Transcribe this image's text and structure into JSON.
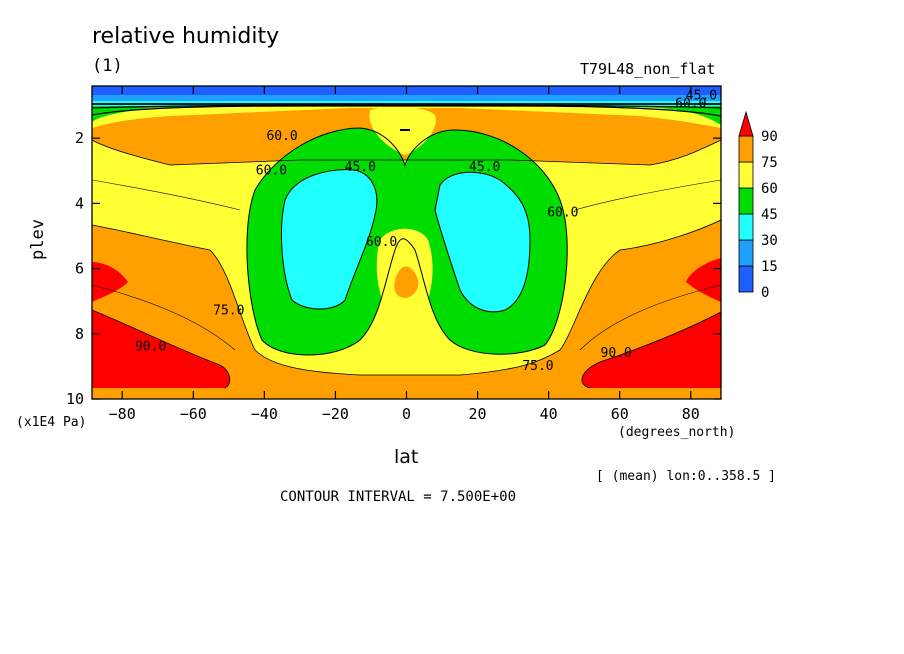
{
  "title": "relative humidity",
  "units_label": "(1)",
  "experiment": "T79L48_non_flat",
  "subset_note": "[ (mean) lon:0..358.5 ]",
  "contour_interval": "CONTOUR INTERVAL = 7.500E+00",
  "chart_data": {
    "type": "contour",
    "xlabel": "lat",
    "xunit": "(degrees_north)",
    "ylabel": "plev",
    "yunit": "(x1E4 Pa)",
    "xlim": [
      -88.5,
      88.5
    ],
    "ylim": [
      0.4,
      10
    ],
    "y_inverted": true,
    "xticks": [
      -80,
      -60,
      -40,
      -20,
      0,
      20,
      40,
      60,
      80
    ],
    "xticklabels": [
      "−80",
      "−60",
      "−40",
      "−20",
      "0",
      "20",
      "40",
      "60",
      "80"
    ],
    "yticks": [
      2,
      4,
      6,
      8,
      10
    ],
    "yticklabels": [
      "2",
      "4",
      "6",
      "8",
      "10"
    ],
    "colorbar": {
      "levels": [
        0,
        15,
        30,
        45,
        60,
        75,
        90
      ],
      "labels": [
        "0",
        "15",
        "30",
        "45",
        "60",
        "75",
        "90"
      ],
      "colors": [
        "#1f5fff",
        "#1fa0ff",
        "#1fffff",
        "#00dd00",
        "#ffff33",
        "#ff9f00",
        "#ff0000"
      ]
    },
    "contour_labels": [
      {
        "text": "60.0",
        "x": 80,
        "y": 0.95
      },
      {
        "text": "45.0",
        "x": 83,
        "y": 0.7
      },
      {
        "text": "60.0",
        "x": -35,
        "y": 1.95
      },
      {
        "text": "60.0",
        "x": -38,
        "y": 3.0
      },
      {
        "text": "45.0",
        "x": -13,
        "y": 2.9
      },
      {
        "text": "45.0",
        "x": 22,
        "y": 2.9
      },
      {
        "text": "60.0",
        "x": 44,
        "y": 4.3
      },
      {
        "text": "60.0",
        "x": -7,
        "y": 5.2
      },
      {
        "text": "75.0",
        "x": -50,
        "y": 7.3
      },
      {
        "text": "75.0",
        "x": 37,
        "y": 9.0
      },
      {
        "text": "90.0",
        "x": -72,
        "y": 8.4
      },
      {
        "text": "90.0",
        "x": 59,
        "y": 8.6
      }
    ]
  }
}
